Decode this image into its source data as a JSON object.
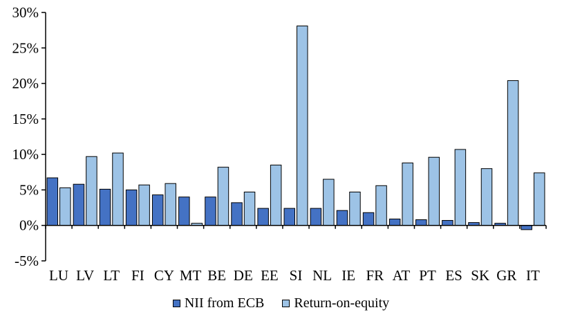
{
  "chart_data": {
    "type": "bar",
    "categories": [
      "LU",
      "LV",
      "LT",
      "FI",
      "CY",
      "MT",
      "BE",
      "DE",
      "EE",
      "SI",
      "NL",
      "IE",
      "FR",
      "AT",
      "PT",
      "ES",
      "SK",
      "GR",
      "IT"
    ],
    "series": [
      {
        "name": "NII from ECB",
        "color": "#4472c4",
        "values": [
          6.7,
          5.8,
          5.1,
          5.0,
          4.3,
          4.0,
          4.0,
          3.2,
          2.4,
          2.4,
          2.4,
          2.1,
          1.8,
          0.9,
          0.8,
          0.7,
          0.4,
          0.3,
          -0.6
        ]
      },
      {
        "name": "Return-on-equity",
        "color": "#9dc3e6",
        "values": [
          5.3,
          9.7,
          10.2,
          5.7,
          5.9,
          0.3,
          8.2,
          4.7,
          8.5,
          28.1,
          6.5,
          4.7,
          5.6,
          8.8,
          9.6,
          10.7,
          8.0,
          20.4,
          7.4
        ]
      }
    ],
    "y_ticks": [
      "-5%",
      "0%",
      "5%",
      "10%",
      "15%",
      "20%",
      "25%",
      "30%"
    ],
    "y_tick_values": [
      -5,
      0,
      5,
      10,
      15,
      20,
      25,
      30
    ],
    "ylim": [
      -5,
      30
    ],
    "title": "",
    "xlabel": "",
    "ylabel": "",
    "grid": false,
    "legend_position": "bottom"
  }
}
